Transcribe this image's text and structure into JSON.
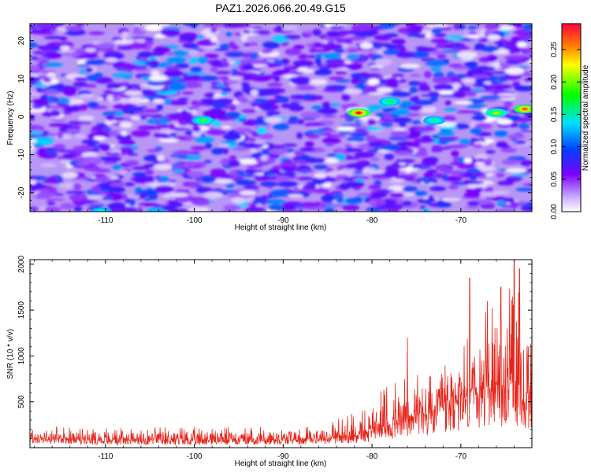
{
  "chart_data": [
    {
      "type": "heatmap",
      "title": "PAZ1.2026.066.20.49.G15",
      "xlabel": "Height of straight line (km)",
      "ylabel": "Frequency (Hz)",
      "xlim": [
        -118.5,
        -62
      ],
      "ylim": [
        -25,
        24.5
      ],
      "xticks": [
        "-110",
        "-100",
        "-90",
        "-80",
        "-70"
      ],
      "xtick_values": [
        -110,
        -100,
        -90,
        -80,
        -70
      ],
      "yticks": [
        "-20",
        "-10",
        "0",
        "10",
        "20"
      ],
      "ytick_values": [
        -20,
        -10,
        0,
        10,
        20
      ],
      "hotspots": [
        {
          "x": -81.5,
          "y": 1,
          "amplitude": 0.29
        },
        {
          "x": -62.8,
          "y": 2,
          "amplitude": 0.26
        },
        {
          "x": -66,
          "y": 1,
          "amplitude": 0.16
        },
        {
          "x": -99,
          "y": -1,
          "amplitude": 0.13
        },
        {
          "x": -78,
          "y": 4,
          "amplitude": 0.12
        },
        {
          "x": -73,
          "y": -1,
          "amplitude": 0.11
        },
        {
          "x": -110.5,
          "y": -25,
          "amplitude": 0.1
        }
      ],
      "colorbar": {
        "label": "Normalized spectral amplitude",
        "range": [
          0,
          0.29
        ],
        "ticks": [
          "0.00",
          "0.05",
          "0.10",
          "0.15",
          "0.20",
          "0.25"
        ],
        "tick_values": [
          0,
          0.05,
          0.1,
          0.15,
          0.2,
          0.25
        ],
        "colors": [
          "#ffffff",
          "#7a00ff",
          "#0040ff",
          "#00e0ff",
          "#00ff00",
          "#ffff00",
          "#ff8000",
          "#ff0040"
        ]
      }
    },
    {
      "type": "line",
      "xlabel": "Height of straight line (km)",
      "ylabel": "SNR (10 * v/v)",
      "xlim": [
        -118.5,
        -62
      ],
      "ylim": [
        0,
        2050
      ],
      "xticks": [
        "-110",
        "-100",
        "-90",
        "-80",
        "-70"
      ],
      "xtick_values": [
        -110,
        -100,
        -90,
        -80,
        -70
      ],
      "yticks": [
        "500",
        "1000",
        "1500",
        "2000"
      ],
      "ytick_values": [
        500,
        1000,
        1500,
        2000
      ],
      "color": "#e8241a",
      "series": [
        {
          "name": "SNR",
          "envelope": {
            "x": [
              -118.5,
              -110,
              -100,
              -90,
              -85,
              -82,
              -80,
              -78,
              -76,
              -74,
              -72,
              -70,
              -68,
              -66,
              -64,
              -63,
              -62
            ],
            "base": [
              90,
              80,
              75,
              80,
              90,
              120,
              160,
              220,
              280,
              330,
              380,
              440,
              520,
              560,
              600,
              520,
              500
            ],
            "peak": [
              230,
              220,
              230,
              230,
              280,
              400,
              550,
              700,
              900,
              780,
              900,
              1050,
              1500,
              1550,
              1850,
              1650,
              1400
            ]
          },
          "spikes": [
            {
              "x": -76,
              "y": 1200
            },
            {
              "x": -69,
              "y": 1850
            },
            {
              "x": -67,
              "y": 1600
            },
            {
              "x": -65.5,
              "y": 1750
            },
            {
              "x": -64,
              "y": 2050
            },
            {
              "x": -63.4,
              "y": 1950
            },
            {
              "x": -62.4,
              "y": 1100
            }
          ]
        }
      ]
    }
  ]
}
